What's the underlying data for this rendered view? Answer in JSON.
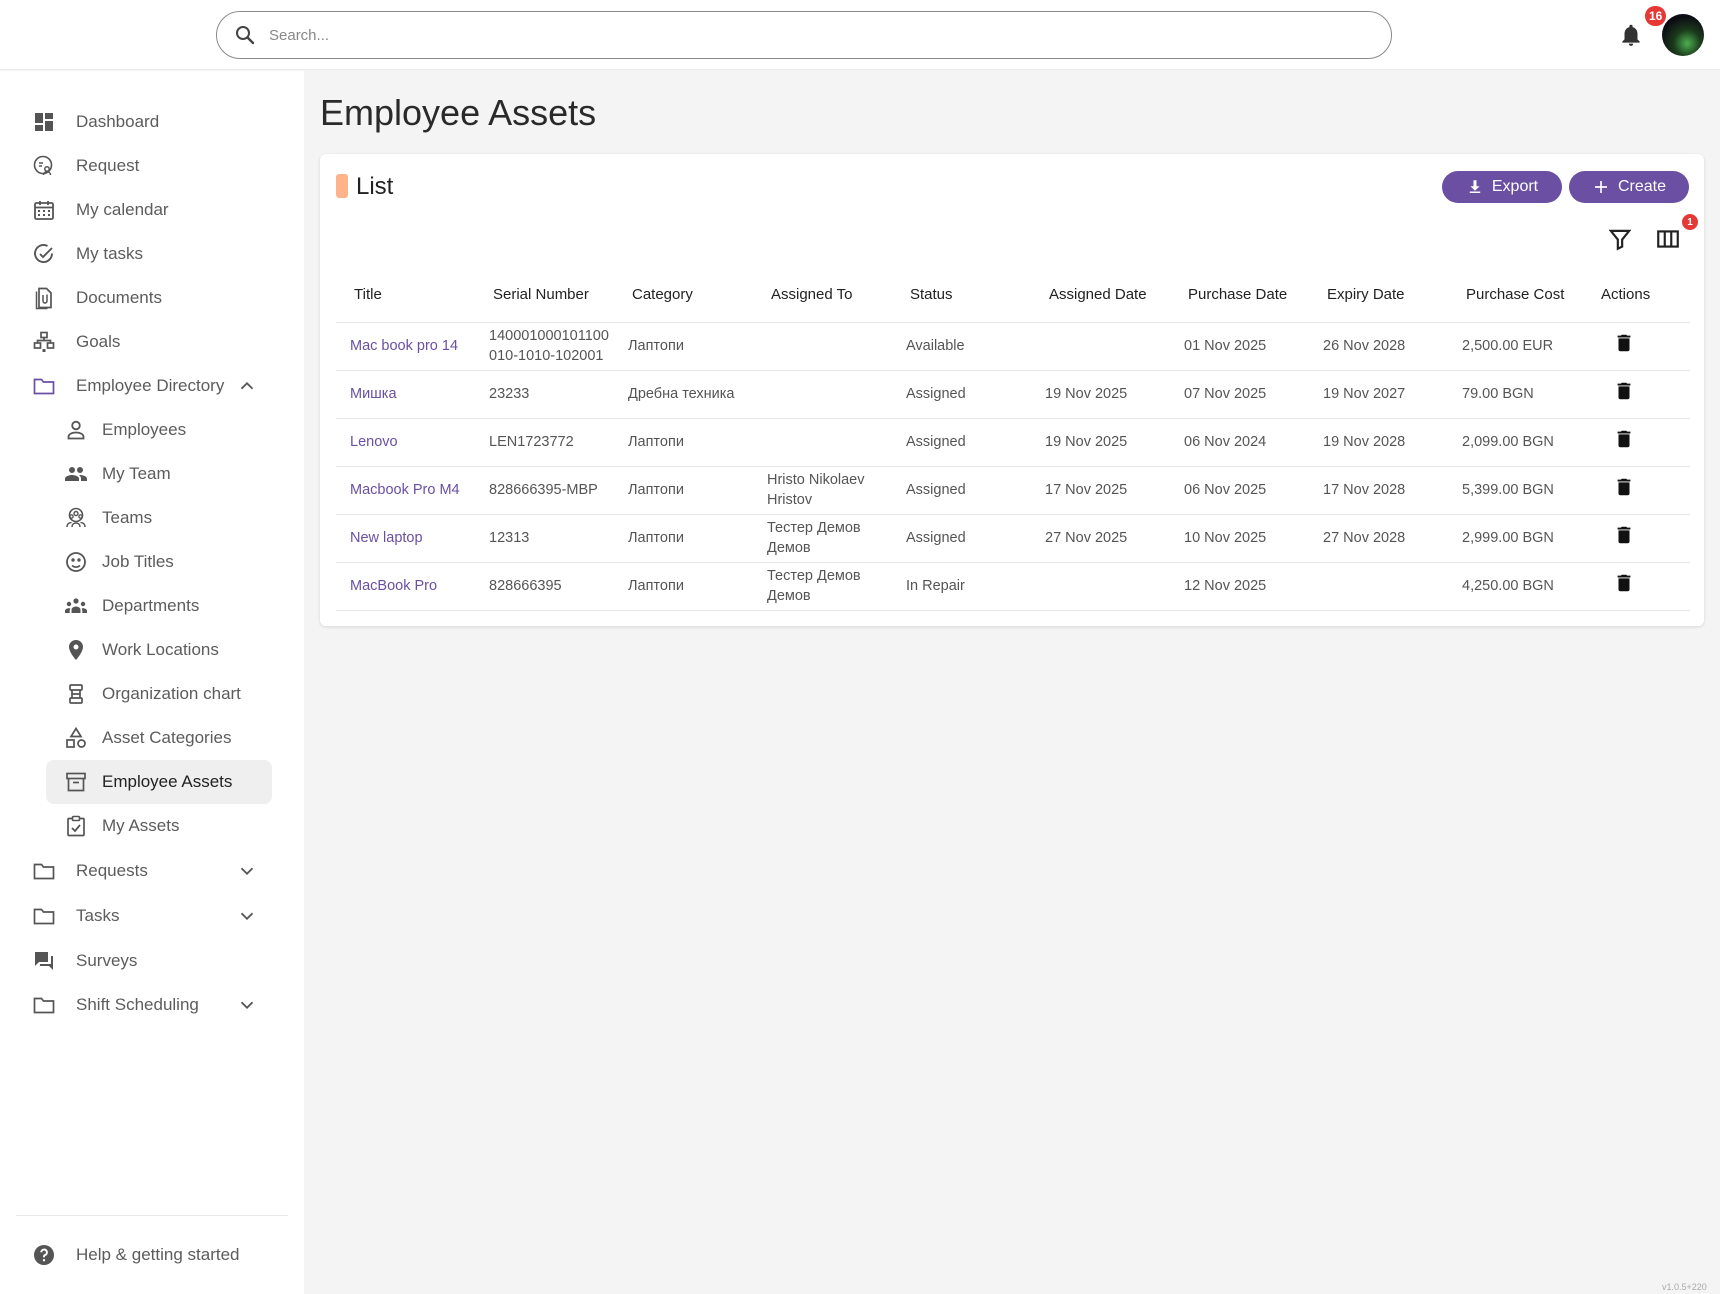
{
  "header": {
    "search_placeholder": "Search...",
    "notifications_count": "16"
  },
  "sidebar": {
    "items": [
      {
        "label": "Dashboard"
      },
      {
        "label": "Request"
      },
      {
        "label": "My calendar"
      },
      {
        "label": "My tasks"
      },
      {
        "label": "Documents"
      },
      {
        "label": "Goals"
      },
      {
        "label": "Employee Directory"
      },
      {
        "label": "Employees"
      },
      {
        "label": "My Team"
      },
      {
        "label": "Teams"
      },
      {
        "label": "Job Titles"
      },
      {
        "label": "Departments"
      },
      {
        "label": "Work Locations"
      },
      {
        "label": "Organization chart"
      },
      {
        "label": "Asset Categories"
      },
      {
        "label": "Employee Assets"
      },
      {
        "label": "My Assets"
      },
      {
        "label": "Requests"
      },
      {
        "label": "Tasks"
      },
      {
        "label": "Surveys"
      },
      {
        "label": "Shift Scheduling"
      }
    ],
    "help_label": "Help & getting started"
  },
  "page": {
    "title": "Employee Assets"
  },
  "card": {
    "title": "List",
    "export_label": "Export",
    "create_label": "Create",
    "columns_badge": "1"
  },
  "table": {
    "columns": [
      "Title",
      "Serial Number",
      "Category",
      "Assigned To",
      "Status",
      "Assigned Date",
      "Purchase Date",
      "Expiry Date",
      "Purchase Cost",
      "Actions"
    ],
    "rows": [
      {
        "title": "Mac book pro 14",
        "serial": "140001000101100010-1010-102001",
        "category": "Лаптопи",
        "assigned_to": "",
        "status": "Available",
        "assigned_date": "",
        "purchase_date": "01 Nov 2025",
        "expiry_date": "26 Nov 2028",
        "cost": "2,500.00 EUR"
      },
      {
        "title": "Мишка",
        "serial": "23233",
        "category": "Дребна техника",
        "assigned_to": "",
        "status": "Assigned",
        "assigned_date": "19 Nov 2025",
        "purchase_date": "07 Nov 2025",
        "expiry_date": "19 Nov 2027",
        "cost": "79.00 BGN"
      },
      {
        "title": "Lenovo",
        "serial": "LEN1723772",
        "category": "Лаптопи",
        "assigned_to": "",
        "status": "Assigned",
        "assigned_date": "19 Nov 2025",
        "purchase_date": "06 Nov 2024",
        "expiry_date": "19 Nov 2028",
        "cost": "2,099.00 BGN"
      },
      {
        "title": "Macbook Pro M4",
        "serial": "828666395-MBP",
        "category": "Лаптопи",
        "assigned_to": "Hristo Nikolaev Hristov",
        "status": "Assigned",
        "assigned_date": "17 Nov 2025",
        "purchase_date": "06 Nov 2025",
        "expiry_date": "17 Nov 2028",
        "cost": "5,399.00 BGN"
      },
      {
        "title": "New laptop",
        "serial": "12313",
        "category": "Лаптопи",
        "assigned_to": "Тестер Демов Демов",
        "status": "Assigned",
        "assigned_date": "27 Nov 2025",
        "purchase_date": "10 Nov 2025",
        "expiry_date": "27 Nov 2028",
        "cost": "2,999.00 BGN"
      },
      {
        "title": "MacBook Pro",
        "serial": "828666395",
        "category": "Лаптопи",
        "assigned_to": "Тестер Демов Демов",
        "status": "In Repair",
        "assigned_date": "",
        "purchase_date": "12 Nov 2025",
        "expiry_date": "",
        "cost": "4,250.00 BGN"
      }
    ]
  },
  "footer": {
    "version": "v1.0.5+220"
  },
  "colors": {
    "accent": "#6a4fa3",
    "card_accent": "#ffb38a",
    "badge": "#e53935"
  }
}
